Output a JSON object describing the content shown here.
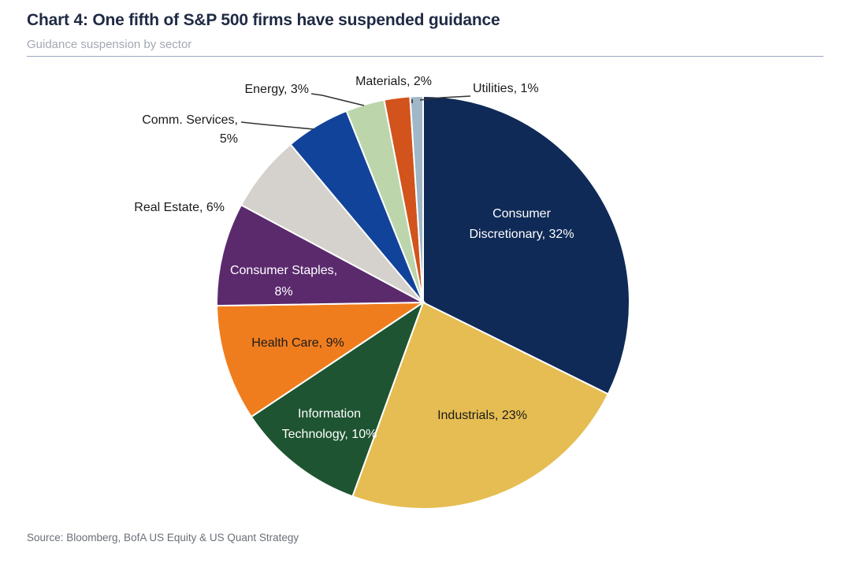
{
  "header": {
    "title": "Chart 4: One fifth of S&P 500 firms have suspended guidance",
    "subtitle": "Guidance suspension by sector"
  },
  "footer": {
    "source": "Source: Bloomberg, BofA US Equity & US Quant Strategy"
  },
  "chart_data": {
    "type": "pie",
    "title": "Chart 4: One fifth of S&P 500 firms have suspended guidance",
    "subtitle": "Guidance suspension by sector",
    "unit": "%",
    "slices": [
      {
        "name": "Consumer Discretionary",
        "value": 32,
        "color": "#0f2a56",
        "label_lines": [
          "Consumer",
          "Discretionary, 32%"
        ],
        "label_color": "#ffffff"
      },
      {
        "name": "Industrials",
        "value": 23,
        "color": "#e6bd52",
        "label_lines": [
          "Industrials, 23%"
        ],
        "label_color": "#1a1a1a"
      },
      {
        "name": "Information Technology",
        "value": 10,
        "color": "#1e5431",
        "label_lines": [
          "Information",
          "Technology, 10%"
        ],
        "label_color": "#ffffff"
      },
      {
        "name": "Health Care",
        "value": 9,
        "color": "#ef7d1e",
        "label_lines": [
          "Health Care, 9%"
        ],
        "label_color": "#1a1a1a"
      },
      {
        "name": "Consumer Staples",
        "value": 8,
        "color": "#5a2a6d",
        "label_lines": [
          "Consumer Staples,",
          "8%"
        ],
        "label_color": "#ffffff"
      },
      {
        "name": "Real Estate",
        "value": 6,
        "color": "#d5d1cc",
        "label_lines": [
          "Real Estate, 6%"
        ],
        "label_color": "#1a1a1a"
      },
      {
        "name": "Comm. Services",
        "value": 5,
        "color": "#12439a",
        "label_lines": [
          "Comm. Services,",
          "5%"
        ],
        "label_color": "#1a1a1a"
      },
      {
        "name": "Energy",
        "value": 3,
        "color": "#bcd5ab",
        "label_lines": [
          "Energy, 3%"
        ],
        "label_color": "#1a1a1a"
      },
      {
        "name": "Materials",
        "value": 2,
        "color": "#d2531b",
        "label_lines": [
          "Materials, 2%"
        ],
        "label_color": "#1a1a1a"
      },
      {
        "name": "Utilities",
        "value": 1,
        "color": "#9fb7c6",
        "label_lines": [
          "Utilities, 1%"
        ],
        "label_color": "#1a1a1a"
      }
    ],
    "legend": "none"
  }
}
